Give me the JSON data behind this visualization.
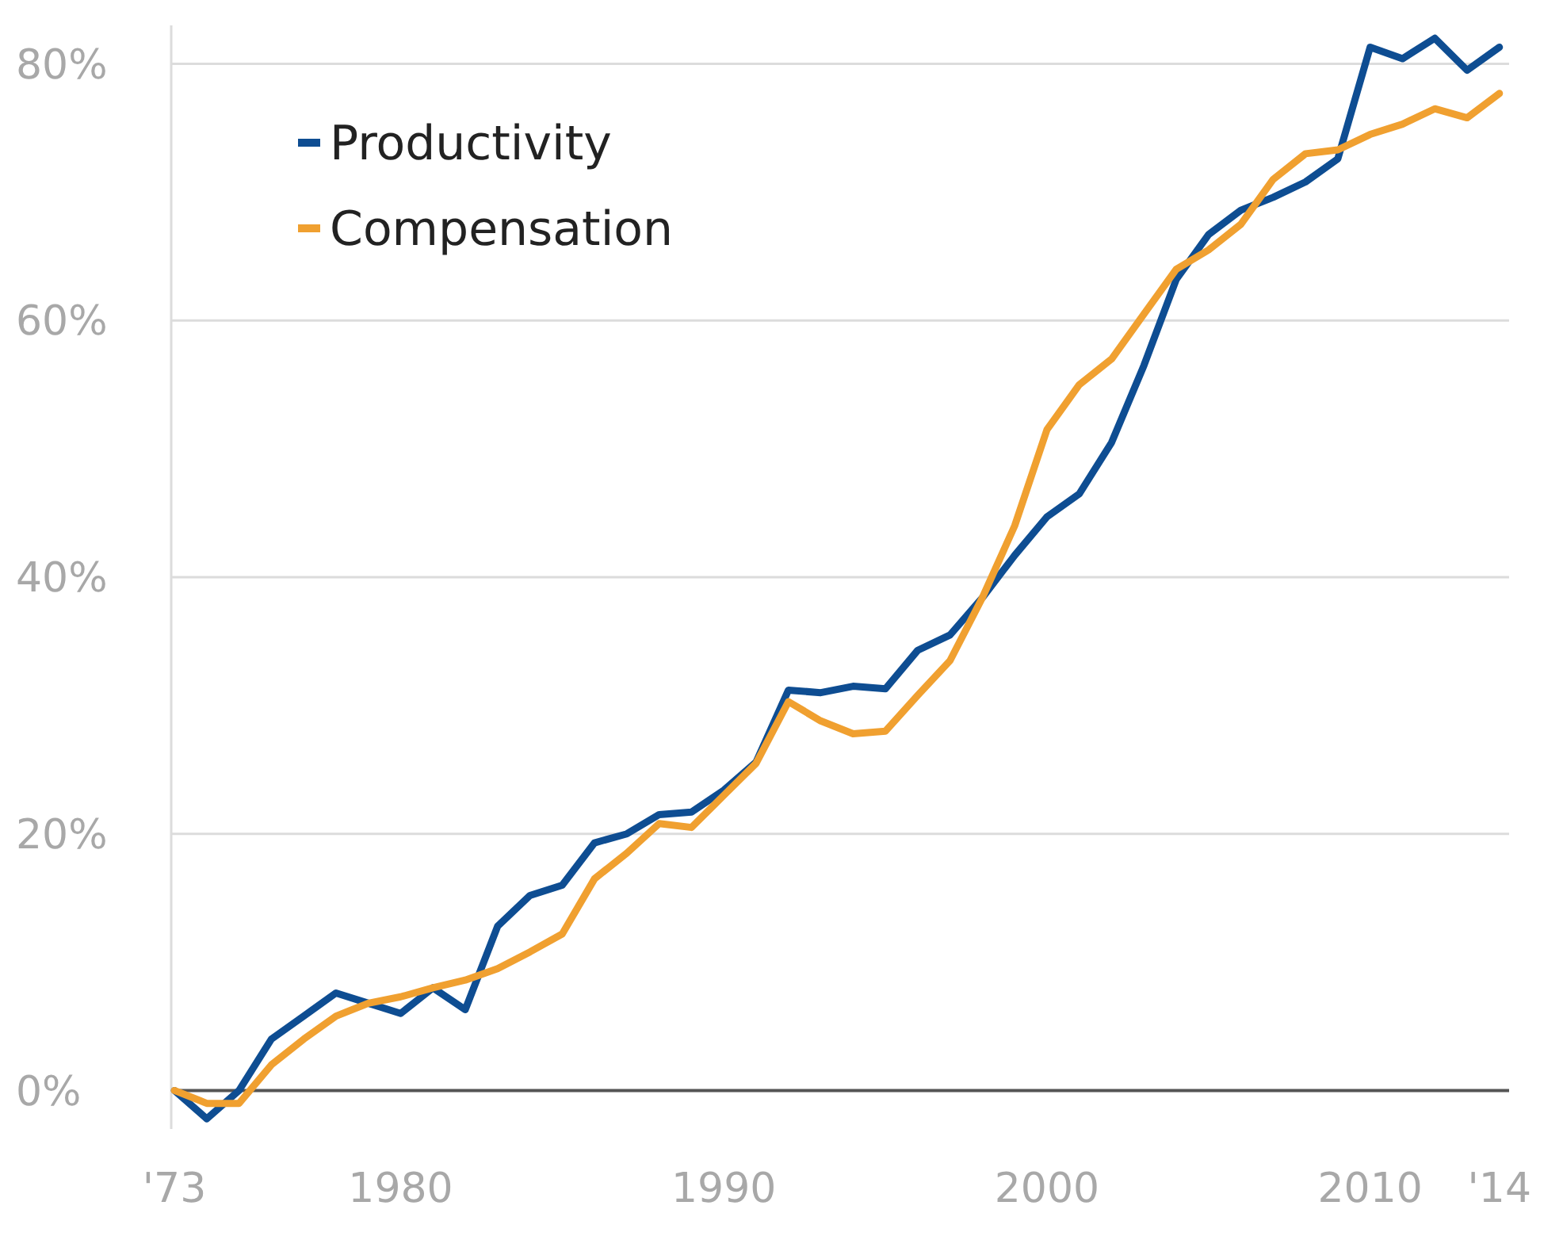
{
  "chart_data": {
    "type": "line",
    "x": [
      1973,
      1974,
      1975,
      1976,
      1977,
      1978,
      1979,
      1980,
      1981,
      1982,
      1983,
      1984,
      1985,
      1986,
      1987,
      1988,
      1989,
      1990,
      1991,
      1992,
      1993,
      1994,
      1995,
      1996,
      1997,
      1998,
      1999,
      2000,
      2001,
      2002,
      2003,
      2004,
      2005,
      2006,
      2007,
      2008,
      2009,
      2010,
      2011,
      2012,
      2013,
      2014
    ],
    "series": [
      {
        "name": "Productivity",
        "color": "#0e4d92",
        "values": [
          0,
          -2.2,
          0,
          4,
          5.8,
          7.6,
          6.8,
          6,
          8,
          6.3,
          12.8,
          15.2,
          16,
          19.3,
          20,
          21.5,
          21.7,
          23.4,
          25.6,
          31.2,
          31,
          31.5,
          31.3,
          34.3,
          35.5,
          38.4,
          41.7,
          44.7,
          46.5,
          50.5,
          56.5,
          63.2,
          66.7,
          68.6,
          69.6,
          70.8,
          72.6,
          81.3,
          80.4,
          82,
          79.5,
          81.3
        ]
      },
      {
        "name": "Compensation",
        "color": "#f0a030",
        "values": [
          0,
          -1,
          -1,
          2,
          4,
          5.8,
          6.8,
          7.3,
          8,
          8.6,
          9.5,
          10.8,
          12.2,
          16.5,
          18.5,
          20.8,
          20.5,
          23,
          25.5,
          30.3,
          28.8,
          27.8,
          28,
          30.8,
          33.5,
          38.4,
          44,
          51.5,
          55,
          57,
          60.5,
          64,
          65.5,
          67.5,
          71,
          73,
          73.3,
          74.5,
          75.3,
          76.5,
          75.8,
          77.7
        ]
      }
    ],
    "xlim": [
      1972.9,
      2014.3
    ],
    "xticks": [
      {
        "value": 1973,
        "label": "'73"
      },
      1980,
      1990,
      2000,
      2010,
      {
        "value": 2014,
        "label": "'14"
      }
    ],
    "ylim": [
      -3,
      83
    ],
    "yticks": [
      {
        "value": 0,
        "label": "0%"
      },
      {
        "value": 20,
        "label": "20%"
      },
      {
        "value": 40,
        "label": "40%"
      },
      {
        "value": 60,
        "label": "60%"
      },
      {
        "value": 80,
        "label": "80%"
      }
    ],
    "grid": "y",
    "legend": "top left",
    "line_style": "solid",
    "marker": "none"
  }
}
